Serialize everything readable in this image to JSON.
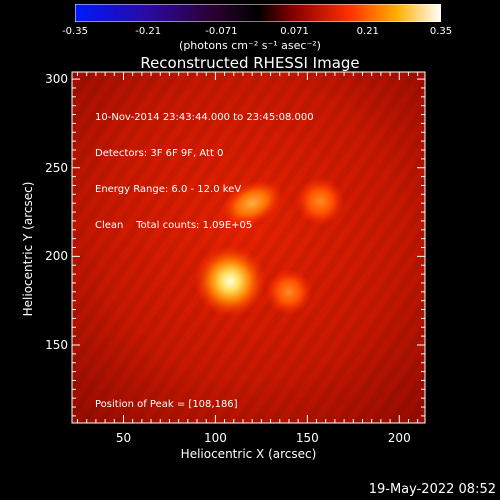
{
  "colorbar": {
    "ticks": [
      "-0.35",
      "-0.21",
      "-0.071",
      "0.071",
      "0.21",
      "0.35"
    ],
    "units": "(photons cm⁻² s⁻¹ asec⁻²)"
  },
  "image": {
    "title": "Reconstructed RHESSI Image",
    "info_lines": [
      "10-Nov-2014 23:43:44.000 to 23:45:08.000",
      "Detectors: 3F 6F 9F, Att 0",
      "Energy Range: 6.0 - 12.0 keV",
      "Clean    Total counts: 1.09E+05"
    ],
    "peak_label": "Position of Peak = [108,186]",
    "date_stamp": "19-May-2022 08:52"
  },
  "chart_data": {
    "type": "heatmap",
    "title": "Reconstructed RHESSI Image",
    "xlabel": "Heliocentric X (arcsec)",
    "ylabel": "Heliocentric Y (arcsec)",
    "xlim": [
      22,
      214
    ],
    "ylim": [
      106,
      304
    ],
    "xticks": [
      50,
      100,
      150,
      200
    ],
    "yticks": [
      150,
      200,
      250,
      300
    ],
    "colorbar_range": [
      -0.35,
      0.35
    ],
    "peak": [
      108,
      186
    ],
    "sources": [
      {
        "x": 108,
        "y": 186,
        "intensity": 1.0
      },
      {
        "x": 120,
        "y": 230,
        "intensity": 0.55
      },
      {
        "x": 157,
        "y": 231,
        "intensity": 0.45
      },
      {
        "x": 140,
        "y": 180,
        "intensity": 0.4
      }
    ]
  }
}
